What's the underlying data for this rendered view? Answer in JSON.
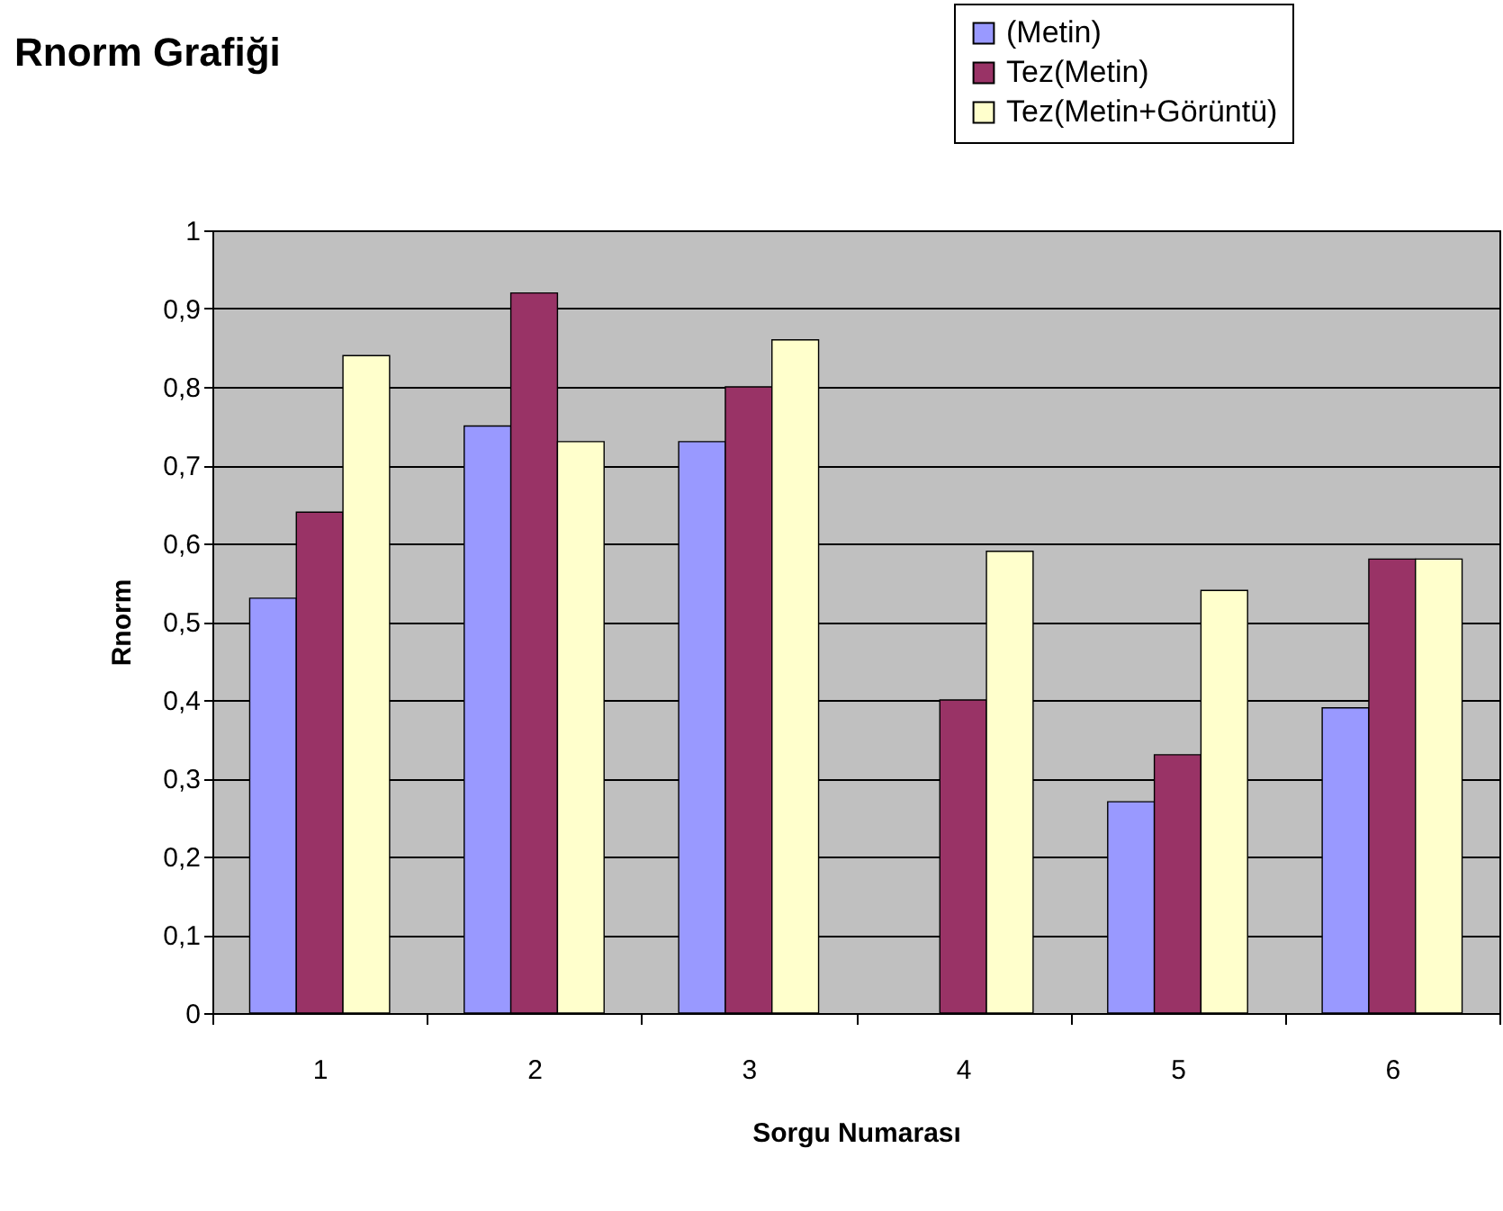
{
  "chart_data": {
    "type": "bar",
    "title": "Rnorm Grafiği",
    "xlabel": "Sorgu Numarası",
    "ylabel": "Rnorm",
    "categories": [
      "1",
      "2",
      "3",
      "4",
      "5",
      "6"
    ],
    "series": [
      {
        "name": "(Metin)",
        "color": "#9999ff",
        "values": [
          0.53,
          0.75,
          0.73,
          null,
          0.27,
          0.39
        ]
      },
      {
        "name": "Tez(Metin)",
        "color": "#993366",
        "values": [
          0.64,
          0.92,
          0.8,
          0.4,
          0.33,
          0.58
        ]
      },
      {
        "name": "Tez(Metin+Görüntü)",
        "color": "#ffffcc",
        "values": [
          0.84,
          0.73,
          0.86,
          0.59,
          0.54,
          0.58
        ]
      }
    ],
    "ylim": [
      0,
      1
    ],
    "yticks": [
      {
        "value": 0,
        "label": "0"
      },
      {
        "value": 0.1,
        "label": "0,1"
      },
      {
        "value": 0.2,
        "label": "0,2"
      },
      {
        "value": 0.3,
        "label": "0,3"
      },
      {
        "value": 0.4,
        "label": "0,4"
      },
      {
        "value": 0.5,
        "label": "0,5"
      },
      {
        "value": 0.6,
        "label": "0,6"
      },
      {
        "value": 0.7,
        "label": "0,7"
      },
      {
        "value": 0.8,
        "label": "0,8"
      },
      {
        "value": 0.9,
        "label": "0,9"
      },
      {
        "value": 1,
        "label": "1"
      }
    ],
    "grid": "y",
    "legend": "top right"
  }
}
